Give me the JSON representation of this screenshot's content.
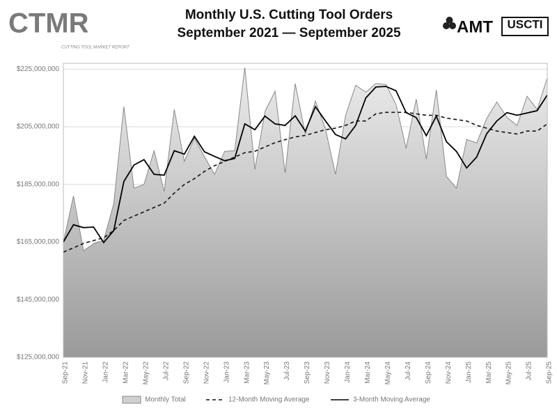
{
  "chart_data": {
    "type": "line",
    "title": "Monthly U.S. Cutting Tool Orders",
    "subtitle": "September 2021 — September 2025",
    "logos": {
      "ctmr": "CTMR",
      "ctmr_tagline": "CUTTING TOOL MARKET REPORT",
      "amt": "AMT",
      "usmti": "USCTI"
    },
    "categories": [
      "Sep-21",
      null,
      "Nov-21",
      null,
      "Jan-22",
      null,
      "Mar-22",
      null,
      "May-22",
      null,
      "Jul-22",
      null,
      "Sep-22",
      null,
      "Nov-22",
      null,
      "Jan-23",
      null,
      "Mar-23",
      null,
      "May-23",
      null,
      "Jul-23",
      null,
      "Sep-23",
      null,
      "Nov-23",
      null,
      "Jan-24",
      null,
      "Mar-24",
      null,
      "May-24",
      null,
      "Jul-24",
      null,
      "Sep-24",
      null,
      "Nov-24",
      null,
      "Jan-25",
      null,
      "Mar-25",
      null,
      "May-25",
      null,
      "Jul-25",
      null,
      "Sep-25"
    ],
    "series": [
      {
        "name": "Monthly Total",
        "mark": "area",
        "color": "#888888",
        "fill": "#d0d0d0",
        "values": [
          164900000,
          181000000,
          162000000,
          164400000,
          165600000,
          178400000,
          212000000,
          183700000,
          185000000,
          196700000,
          182500000,
          211000000,
          193000000,
          201000000,
          194600000,
          188500000,
          196500000,
          196700000,
          225500000,
          190200000,
          210300000,
          217300000,
          189000000,
          220000000,
          202500000,
          213900000,
          204200000,
          188500000,
          209000000,
          219400000,
          217000000,
          220000000,
          219700000,
          212700000,
          197500000,
          214600000,
          193800000,
          217800000,
          187800000,
          183700000,
          200600000,
          199400000,
          207900000,
          213600000,
          208300000,
          205400000,
          215600000,
          211000000,
          221900000
        ]
      },
      {
        "name": "12-Month Moving Average",
        "mark": "line",
        "dashed": true,
        "color": "#111111",
        "values": [
          161500000,
          163000000,
          164500000,
          165500000,
          166500000,
          169000000,
          172500000,
          174000000,
          175500000,
          177000000,
          178500000,
          182000000,
          185000000,
          187000000,
          189500000,
          191500000,
          193000000,
          194500000,
          196000000,
          196500000,
          198000000,
          199500000,
          200500000,
          201500000,
          202000000,
          203000000,
          204000000,
          204500000,
          205500000,
          207000000,
          207000000,
          209500000,
          210000000,
          210000000,
          210000000,
          209500000,
          209000000,
          209000000,
          208000000,
          207500000,
          207000000,
          205500000,
          204500000,
          203500000,
          203000000,
          202500000,
          203500000,
          203500000,
          206000000
        ]
      },
      {
        "name": "3-Month Moving Average",
        "mark": "line",
        "dashed": false,
        "color": "#000000",
        "values": [
          165000000,
          171000000,
          170000000,
          170200000,
          164800000,
          169000000,
          186000000,
          191700000,
          193600000,
          188500000,
          188200000,
          196700000,
          195500000,
          201700000,
          196300000,
          194700000,
          193200000,
          194000000,
          206000000,
          204000000,
          208700000,
          206000000,
          205500000,
          208800000,
          203500000,
          212000000,
          207000000,
          202300000,
          200800000,
          205500000,
          215000000,
          218800000,
          219000000,
          217500000,
          209900000,
          208200000,
          201900000,
          208700000,
          199800000,
          196400000,
          190700000,
          194500000,
          202600000,
          207000000,
          209900000,
          209000000,
          209800000,
          210600000,
          216000000
        ]
      }
    ],
    "ylim": [
      125000000,
      227000000
    ],
    "yticks": [
      {
        "value": 125000000,
        "label": "$125,000,000"
      },
      {
        "value": 145000000,
        "label": "$145,000,000"
      },
      {
        "value": 165000000,
        "label": "$165,000,000"
      },
      {
        "value": 185000000,
        "label": "$185,000,000"
      },
      {
        "value": 205000000,
        "label": "$205,000,000"
      },
      {
        "value": 225000000,
        "label": "$225,000,000"
      }
    ],
    "grid": true,
    "legend": "bottom"
  }
}
